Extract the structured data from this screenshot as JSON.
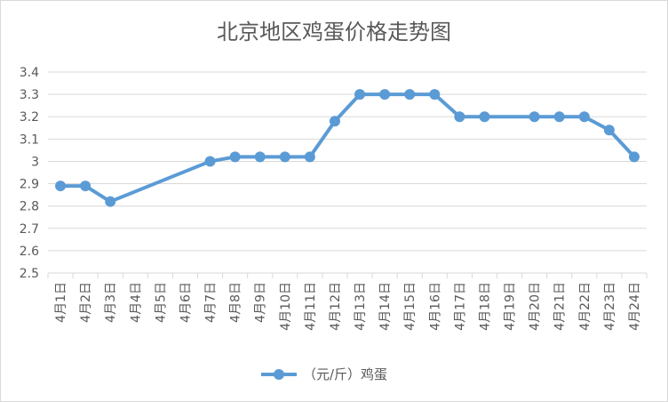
{
  "chart_data": {
    "type": "line",
    "title": "北京地区鸡蛋价格走势图",
    "xlabel": "",
    "ylabel": "",
    "categories": [
      "4月1日",
      "4月2日",
      "4月3日",
      "4月4日",
      "4月5日",
      "4月6日",
      "4月7日",
      "4月8日",
      "4月9日",
      "4月10日",
      "4月11日",
      "4月12日",
      "4月13日",
      "4月14日",
      "4月15日",
      "4月16日",
      "4月17日",
      "4月18日",
      "4月19日",
      "4月20日",
      "4月21日",
      "4月22日",
      "4月23日",
      "4月24日"
    ],
    "y_ticks": [
      "2.5",
      "2.6",
      "2.7",
      "2.8",
      "2.9",
      "3",
      "3.1",
      "3.2",
      "3.3",
      "3.4"
    ],
    "ylim": [
      2.5,
      3.4
    ],
    "grid": true,
    "legend_position": "bottom",
    "series": [
      {
        "name": "（元/斤）鸡蛋",
        "color": "#5B9BD5",
        "values": [
          2.89,
          2.89,
          2.82,
          null,
          null,
          null,
          3.0,
          3.02,
          3.02,
          3.02,
          3.02,
          3.18,
          3.3,
          3.3,
          3.3,
          3.3,
          3.2,
          3.2,
          null,
          3.2,
          3.2,
          3.2,
          3.14,
          3.02
        ]
      }
    ]
  }
}
